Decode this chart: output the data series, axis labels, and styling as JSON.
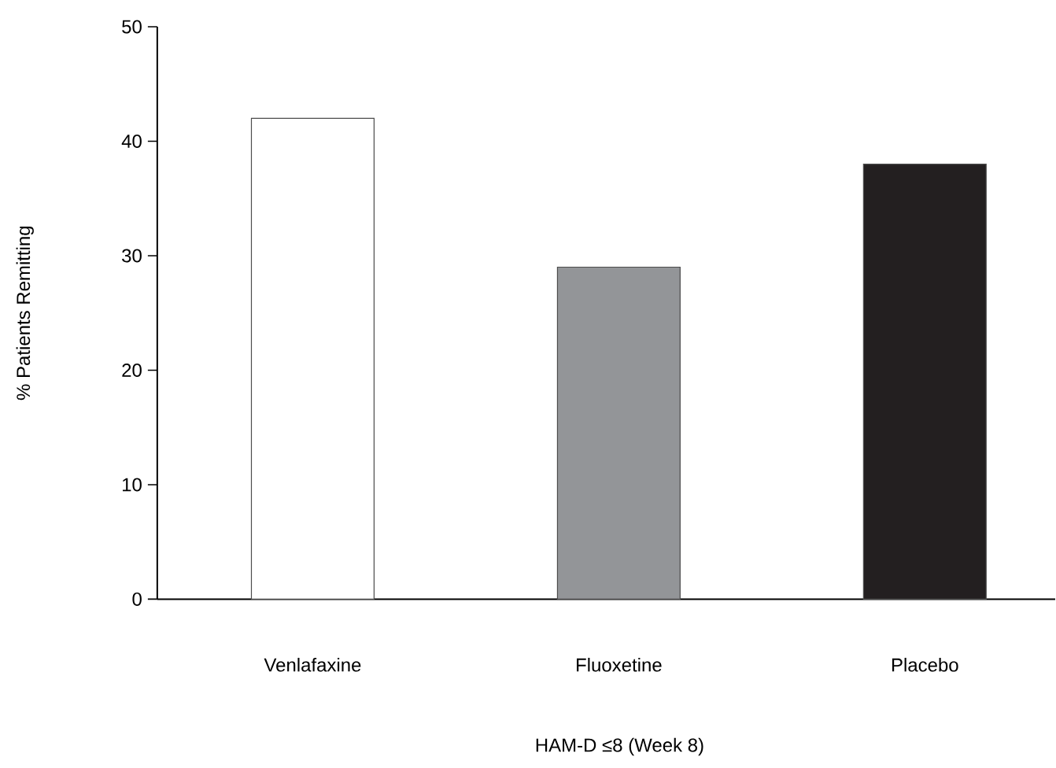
{
  "chart_data": {
    "type": "bar",
    "xlabel": "HAM-D ≤8 (Week 8)",
    "ylabel": "% Patients Remitting",
    "categories": [
      "Venlafaxine",
      "Fluoxetine",
      "Placebo"
    ],
    "values": [
      42,
      29,
      38
    ],
    "colors": [
      "#ffffff",
      "#939598",
      "#231f20"
    ],
    "ylim": [
      0,
      50
    ],
    "yticks": [
      0,
      10,
      20,
      30,
      40,
      50
    ],
    "grid": false
  }
}
